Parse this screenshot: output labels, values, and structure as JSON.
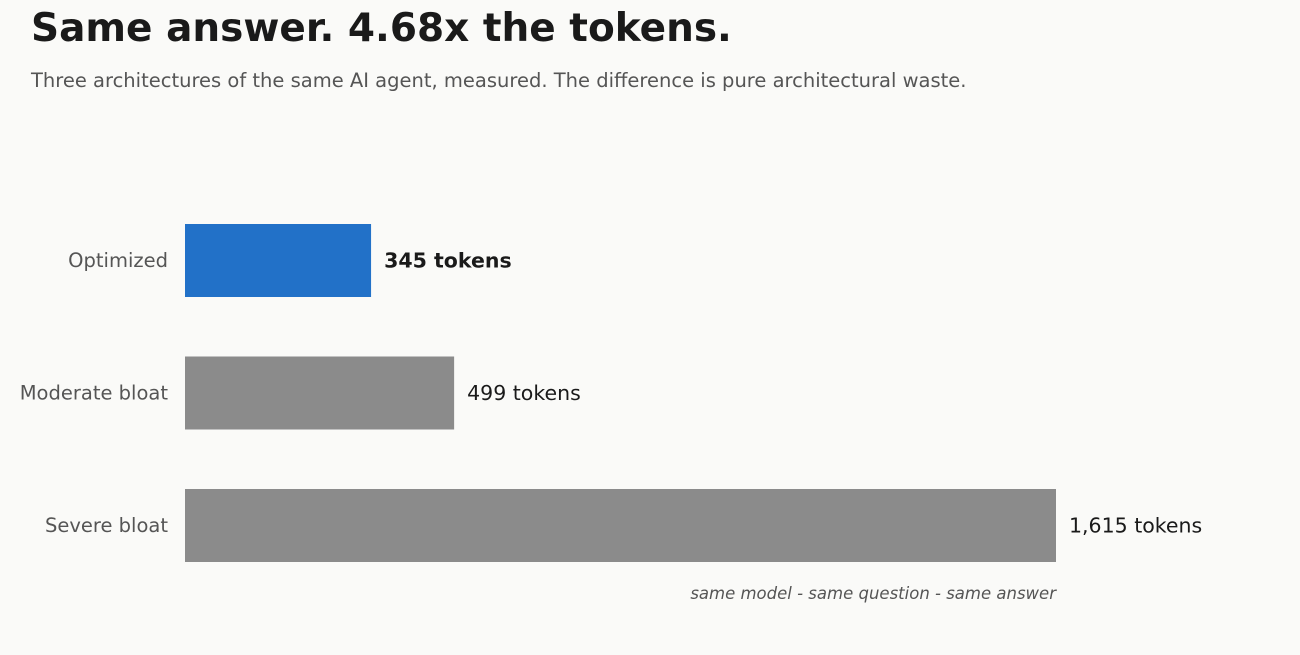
{
  "header": {
    "title": "Same answer. 4.68x the tokens.",
    "subtitle": "Three architectures of the same AI agent, measured. The difference is pure architectural waste."
  },
  "chart_data": {
    "type": "bar",
    "orientation": "horizontal",
    "categories": [
      "Optimized",
      "Moderate bloat",
      "Severe bloat"
    ],
    "values": [
      345,
      499,
      1615
    ],
    "value_labels": [
      "345 tokens",
      "499 tokens",
      "1,615 tokens"
    ],
    "highlight_index": 0,
    "xlim": [
      0,
      1615
    ],
    "grid": false,
    "legend": "none",
    "annotation": "same model - same question - same answer",
    "colors": {
      "highlight": "#2271c8",
      "default": "#8b8b8b"
    }
  }
}
